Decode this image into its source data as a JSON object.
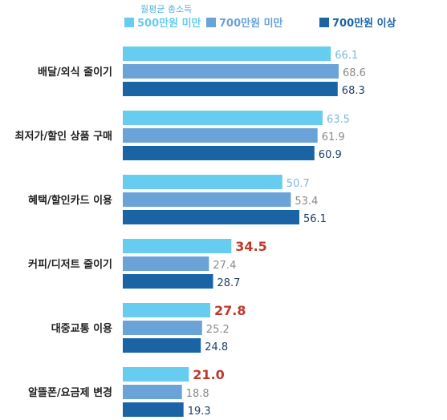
{
  "chart_data": {
    "type": "bar",
    "orientation": "horizontal",
    "legend_title": "월평균 총소득",
    "categories": [
      "배달/외식 줄이기",
      "최저가/할인 상품 구매",
      "혜택/할인카드 이용",
      "커피/디저트 줄이기",
      "대중교통 이용",
      "알뜰폰/요금제 변경"
    ],
    "series": [
      {
        "name": "500만원 미만",
        "color": "#66ccf0",
        "label_color": "#7ab8dc",
        "values": [
          66.1,
          63.5,
          50.7,
          34.5,
          27.8,
          21.0
        ],
        "labels": [
          "66.1",
          "63.5",
          "50.7",
          "34.5",
          "27.8",
          "21.0"
        ],
        "highlight": [
          false,
          false,
          false,
          true,
          true,
          true
        ],
        "highlight_color": "#c0392b"
      },
      {
        "name": "700만원 미만",
        "color": "#6aa3d8",
        "label_color": "#8a8a8a",
        "values": [
          68.6,
          61.9,
          53.4,
          27.4,
          25.2,
          18.8
        ],
        "labels": [
          "68.6",
          "61.9",
          "53.4",
          "27.4",
          "25.2",
          "18.8"
        ]
      },
      {
        "name": "700만원 이상",
        "color": "#1a64a6",
        "label_color": "#1f3f66",
        "values": [
          68.3,
          60.9,
          56.1,
          28.7,
          24.8,
          19.3
        ],
        "labels": [
          "68.3",
          "60.9",
          "56.1",
          "28.7",
          "24.8",
          "19.3"
        ]
      }
    ],
    "xlim": [
      0,
      70
    ],
    "grid": false,
    "legend_placement": "top"
  }
}
